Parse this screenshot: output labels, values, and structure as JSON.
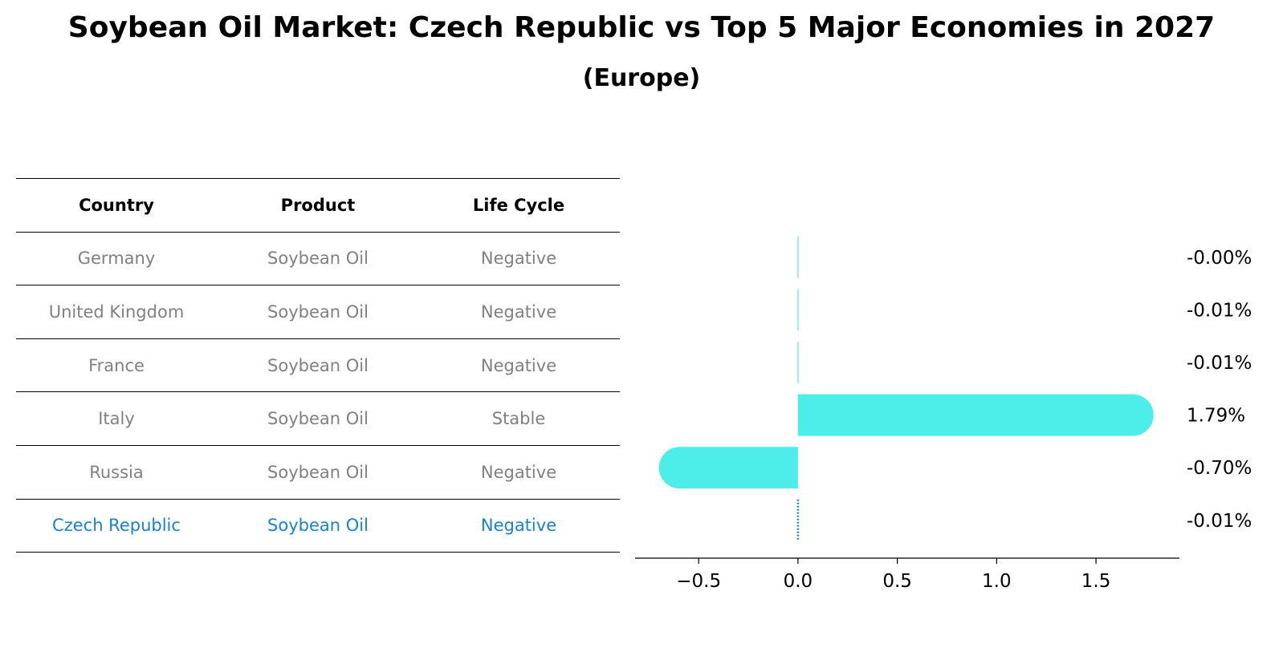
{
  "title": "Soybean Oil Market: Czech Republic vs Top 5 Major Economies in 2027",
  "subtitle": "(Europe)",
  "table": {
    "headers": [
      "Country",
      "Product",
      "Life Cycle"
    ],
    "rows": [
      {
        "country": "Germany",
        "product": "Soybean Oil",
        "life_cycle": "Negative"
      },
      {
        "country": "United Kingdom",
        "product": "Soybean Oil",
        "life_cycle": "Negative"
      },
      {
        "country": "France",
        "product": "Soybean Oil",
        "life_cycle": "Negative"
      },
      {
        "country": "Italy",
        "product": "Soybean Oil",
        "life_cycle": "Stable"
      },
      {
        "country": "Russia",
        "product": "Soybean Oil",
        "life_cycle": "Negative"
      },
      {
        "country": "Czech Republic",
        "product": "Soybean Oil",
        "life_cycle": "Negative"
      }
    ],
    "highlight_country": "Czech Republic"
  },
  "chart_data": {
    "type": "bar",
    "orientation": "horizontal",
    "categories": [
      "Germany",
      "United Kingdom",
      "France",
      "Italy",
      "Russia",
      "Czech Republic"
    ],
    "values": [
      -0.001,
      -0.01,
      -0.01,
      1.79,
      -0.7,
      -0.01
    ],
    "data_labels": [
      "-0.00%",
      "-0.01%",
      "-0.01%",
      "1.79%",
      "-0.70%",
      "-0.01%"
    ],
    "xlim": [
      -0.82,
      1.92
    ],
    "xticks": [
      -0.5,
      0.0,
      0.5,
      1.0,
      1.5
    ],
    "xtick_labels": [
      "−0.5",
      "0.0",
      "0.5",
      "1.0",
      "1.5"
    ],
    "bar_color": "#4deeea",
    "highlight_color": "#1a80d0"
  },
  "colors": {
    "text_muted": "#808080",
    "highlight": "#1a80d0"
  }
}
